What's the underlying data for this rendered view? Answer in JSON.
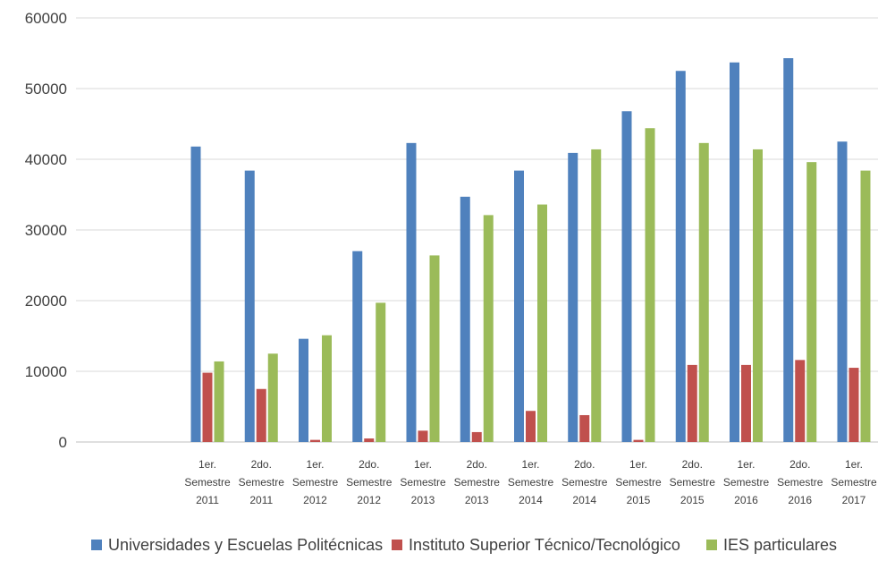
{
  "chart_data": {
    "type": "bar",
    "categories": [
      [
        "1er.",
        "Semestre",
        "2011"
      ],
      [
        "2do.",
        "Semestre",
        "2011"
      ],
      [
        "1er.",
        "Semestre",
        "2012"
      ],
      [
        "2do.",
        "Semestre",
        "2012"
      ],
      [
        "1er.",
        "Semestre",
        "2013"
      ],
      [
        "2do.",
        "Semestre",
        "2013"
      ],
      [
        "1er.",
        "Semestre",
        "2014"
      ],
      [
        "2do.",
        "Semestre",
        "2014"
      ],
      [
        "1er.",
        "Semestre",
        "2015"
      ],
      [
        "2do.",
        "Semestre",
        "2015"
      ],
      [
        "1er.",
        "Semestre",
        "2016"
      ],
      [
        "2do.",
        "Semestre",
        "2016"
      ],
      [
        "1er.",
        "Semestre",
        "2017"
      ]
    ],
    "series": [
      {
        "name": "Universidades y Escuelas Politécnicas",
        "color": "#4f81bd",
        "values": [
          41800,
          38400,
          14600,
          27000,
          42300,
          34700,
          38400,
          40900,
          46800,
          52500,
          53700,
          54300,
          42500
        ]
      },
      {
        "name": "Instituto Superior Técnico/Tecnológico",
        "color": "#c0504d",
        "values": [
          9800,
          7500,
          300,
          500,
          1600,
          1400,
          4400,
          3800,
          300,
          10900,
          10900,
          11600,
          10500
        ]
      },
      {
        "name": "IES particulares",
        "color": "#9bbb59",
        "values": [
          11400,
          12500,
          15100,
          19700,
          26400,
          32100,
          33600,
          41400,
          44400,
          42300,
          41400,
          39600,
          38400
        ]
      }
    ],
    "yticks": [
      "0",
      "10000",
      "20000",
      "30000",
      "40000",
      "50000",
      "60000"
    ],
    "ylim": [
      0,
      60000
    ],
    "grid": true,
    "legend_position": "bottom",
    "title": "",
    "xlabel": "",
    "ylabel": ""
  }
}
